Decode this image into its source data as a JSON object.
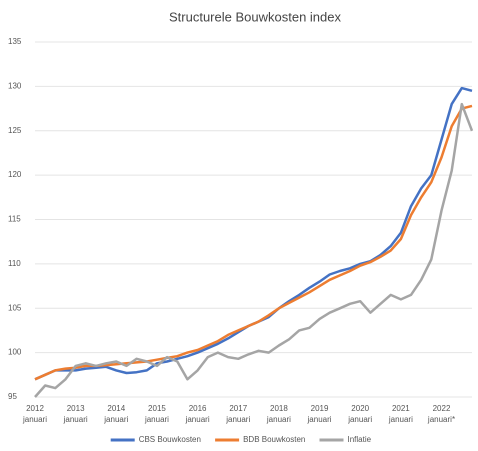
{
  "chart_data": {
    "type": "line",
    "title": "Structurele Bouwkosten index",
    "categories": [
      "2012 januari",
      null,
      null,
      null,
      "2013 januari",
      null,
      null,
      null,
      "2014 januari",
      null,
      null,
      null,
      "2015 januari",
      null,
      null,
      null,
      "2016 januari",
      null,
      null,
      null,
      "2017 januari",
      null,
      null,
      null,
      "2018 januari",
      null,
      null,
      null,
      "2019 januari",
      null,
      null,
      null,
      "2020 januari",
      null,
      null,
      null,
      "2021 januari",
      null,
      null,
      null,
      "2022 januari*",
      null,
      null,
      null
    ],
    "series": [
      {
        "name": "CBS Bouwkosten",
        "color": "#4472c4",
        "values": [
          97,
          97.5,
          98,
          98,
          98,
          98.2,
          98.3,
          98.4,
          98,
          97.7,
          97.8,
          98,
          98.8,
          99,
          99.3,
          99.6,
          100,
          100.5,
          101,
          101.6,
          102.3,
          103,
          103.5,
          104,
          105,
          105.8,
          106.5,
          107.3,
          108,
          108.8,
          109.2,
          109.5,
          110,
          110.3,
          111,
          112,
          113.5,
          116.5,
          118.5,
          120,
          124,
          128,
          129.8,
          129.5
        ]
      },
      {
        "name": "BDB Bouwkosten",
        "color": "#ed7d31",
        "values": [
          97,
          97.5,
          98,
          98.2,
          98.3,
          98.5,
          98.5,
          98.6,
          98.7,
          98.8,
          98.9,
          99,
          99.2,
          99.4,
          99.6,
          100,
          100.3,
          100.8,
          101.3,
          102,
          102.5,
          103,
          103.5,
          104.2,
          105,
          105.6,
          106.2,
          106.8,
          107.5,
          108.2,
          108.7,
          109.2,
          109.8,
          110.2,
          110.8,
          111.5,
          112.8,
          115.5,
          117.5,
          119.2,
          122,
          125.5,
          127.5,
          127.8
        ]
      },
      {
        "name": "Inflatie",
        "color": "#a5a5a5",
        "values": [
          95,
          96.3,
          96,
          97,
          98.5,
          98.8,
          98.5,
          98.8,
          99,
          98.5,
          99.3,
          99,
          98.5,
          99.5,
          99,
          97,
          98,
          99.5,
          100,
          99.5,
          99.3,
          99.8,
          100.2,
          100,
          100.8,
          101.5,
          102.5,
          102.8,
          103.8,
          104.5,
          105,
          105.5,
          105.8,
          104.5,
          105.5,
          106.5,
          106,
          106.5,
          108.2,
          110.5,
          116,
          120.5,
          128,
          125
        ]
      }
    ],
    "ylim": [
      95,
      135
    ],
    "yticks": [
      95,
      100,
      105,
      110,
      115,
      120,
      125,
      130,
      135
    ],
    "grid": true,
    "legend": "bottom"
  }
}
